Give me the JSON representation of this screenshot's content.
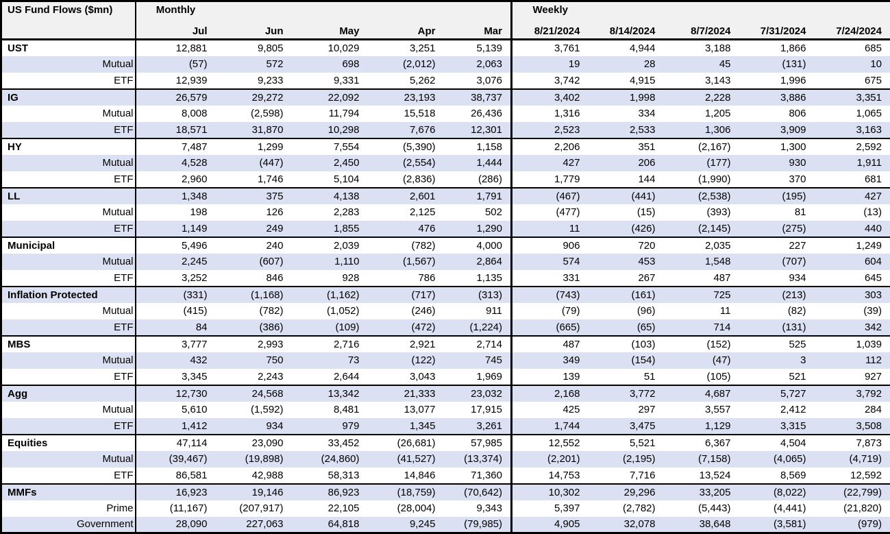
{
  "colors": {
    "stripe": "#dbe0f2",
    "header_bg": "#f1f1f1",
    "border": "#000000",
    "background": "#ffffff",
    "text": "#000000"
  },
  "chart_data": {
    "type": "table",
    "title": "US Fund Flows ($mn)",
    "sections": [
      {
        "label": "Monthly",
        "columns": [
          "Jul",
          "Jun",
          "May",
          "Apr",
          "Mar"
        ]
      },
      {
        "label": "Weekly",
        "columns": [
          "8/21/2024",
          "8/14/2024",
          "8/7/2024",
          "7/31/2024",
          "7/24/2024"
        ]
      }
    ],
    "groups": [
      {
        "rows": [
          {
            "label": "UST",
            "is_group_header": true,
            "values": [
              12881,
              9805,
              10029,
              3251,
              5139,
              3761,
              4944,
              3188,
              1866,
              685
            ]
          },
          {
            "label": "Mutual",
            "is_group_header": false,
            "values": [
              -57,
              572,
              698,
              -2012,
              2063,
              19,
              28,
              45,
              -131,
              10
            ]
          },
          {
            "label": "ETF",
            "is_group_header": false,
            "values": [
              12939,
              9233,
              9331,
              5262,
              3076,
              3742,
              4915,
              3143,
              1996,
              675
            ]
          }
        ]
      },
      {
        "rows": [
          {
            "label": "IG",
            "is_group_header": true,
            "values": [
              26579,
              29272,
              22092,
              23193,
              38737,
              3402,
              1998,
              2228,
              3886,
              3351
            ]
          },
          {
            "label": "Mutual",
            "is_group_header": false,
            "values": [
              8008,
              -2598,
              11794,
              15518,
              26436,
              1316,
              334,
              1205,
              806,
              1065
            ]
          },
          {
            "label": "ETF",
            "is_group_header": false,
            "values": [
              18571,
              31870,
              10298,
              7676,
              12301,
              2523,
              2533,
              1306,
              3909,
              3163
            ]
          }
        ]
      },
      {
        "rows": [
          {
            "label": "HY",
            "is_group_header": true,
            "values": [
              7487,
              1299,
              7554,
              -5390,
              1158,
              2206,
              351,
              -2167,
              1300,
              2592
            ]
          },
          {
            "label": "Mutual",
            "is_group_header": false,
            "values": [
              4528,
              -447,
              2450,
              -2554,
              1444,
              427,
              206,
              -177,
              930,
              1911
            ]
          },
          {
            "label": "ETF",
            "is_group_header": false,
            "values": [
              2960,
              1746,
              5104,
              -2836,
              -286,
              1779,
              144,
              -1990,
              370,
              681
            ]
          }
        ]
      },
      {
        "rows": [
          {
            "label": "LL",
            "is_group_header": true,
            "values": [
              1348,
              375,
              4138,
              2601,
              1791,
              -467,
              -441,
              -2538,
              -195,
              427
            ]
          },
          {
            "label": "Mutual",
            "is_group_header": false,
            "values": [
              198,
              126,
              2283,
              2125,
              502,
              -477,
              -15,
              -393,
              81,
              -13
            ]
          },
          {
            "label": "ETF",
            "is_group_header": false,
            "values": [
              1149,
              249,
              1855,
              476,
              1290,
              11,
              -426,
              -2145,
              -275,
              440
            ]
          }
        ]
      },
      {
        "rows": [
          {
            "label": "Municipal",
            "is_group_header": true,
            "values": [
              5496,
              240,
              2039,
              -782,
              4000,
              906,
              720,
              2035,
              227,
              1249
            ]
          },
          {
            "label": "Mutual",
            "is_group_header": false,
            "values": [
              2245,
              -607,
              1110,
              -1567,
              2864,
              574,
              453,
              1548,
              -707,
              604
            ]
          },
          {
            "label": "ETF",
            "is_group_header": false,
            "values": [
              3252,
              846,
              928,
              786,
              1135,
              331,
              267,
              487,
              934,
              645
            ]
          }
        ]
      },
      {
        "rows": [
          {
            "label": "Inflation Protected",
            "is_group_header": true,
            "values": [
              -331,
              -1168,
              -1162,
              -717,
              -313,
              -743,
              -161,
              725,
              -213,
              303
            ]
          },
          {
            "label": "Mutual",
            "is_group_header": false,
            "values": [
              -415,
              -782,
              -1052,
              -246,
              911,
              -79,
              -96,
              11,
              -82,
              -39
            ]
          },
          {
            "label": "ETF",
            "is_group_header": false,
            "values": [
              84,
              -386,
              -109,
              -472,
              -1224,
              -665,
              -65,
              714,
              -131,
              342
            ]
          }
        ]
      },
      {
        "rows": [
          {
            "label": "MBS",
            "is_group_header": true,
            "values": [
              3777,
              2993,
              2716,
              2921,
              2714,
              487,
              -103,
              -152,
              525,
              1039
            ]
          },
          {
            "label": "Mutual",
            "is_group_header": false,
            "values": [
              432,
              750,
              73,
              -122,
              745,
              349,
              -154,
              -47,
              3,
              112
            ]
          },
          {
            "label": "ETF",
            "is_group_header": false,
            "values": [
              3345,
              2243,
              2644,
              3043,
              1969,
              139,
              51,
              -105,
              521,
              927
            ]
          }
        ]
      },
      {
        "rows": [
          {
            "label": "Agg",
            "is_group_header": true,
            "values": [
              12730,
              24568,
              13342,
              21333,
              23032,
              2168,
              3772,
              4687,
              5727,
              3792
            ]
          },
          {
            "label": "Mutual",
            "is_group_header": false,
            "values": [
              5610,
              -1592,
              8481,
              13077,
              17915,
              425,
              297,
              3557,
              2412,
              284
            ]
          },
          {
            "label": "ETF",
            "is_group_header": false,
            "values": [
              1412,
              934,
              979,
              1345,
              3261,
              1744,
              3475,
              1129,
              3315,
              3508
            ]
          }
        ]
      },
      {
        "rows": [
          {
            "label": "Equities",
            "is_group_header": true,
            "values": [
              47114,
              23090,
              33452,
              -26681,
              57985,
              12552,
              5521,
              6367,
              4504,
              7873
            ]
          },
          {
            "label": "Mutual",
            "is_group_header": false,
            "values": [
              -39467,
              -19898,
              -24860,
              -41527,
              -13374,
              -2201,
              -2195,
              -7158,
              -4065,
              -4719
            ]
          },
          {
            "label": "ETF",
            "is_group_header": false,
            "values": [
              86581,
              42988,
              58313,
              14846,
              71360,
              14753,
              7716,
              13524,
              8569,
              12592
            ]
          }
        ]
      },
      {
        "rows": [
          {
            "label": "MMFs",
            "is_group_header": true,
            "values": [
              16923,
              19146,
              86923,
              -18759,
              -70642,
              10302,
              29296,
              33205,
              -8022,
              -22799
            ]
          },
          {
            "label": "Prime",
            "is_group_header": false,
            "values": [
              -11167,
              -207917,
              22105,
              -28004,
              9343,
              5397,
              -2782,
              -5443,
              -4441,
              -21820
            ]
          },
          {
            "label": "Government",
            "is_group_header": false,
            "values": [
              28090,
              227063,
              64818,
              9245,
              -79985,
              4905,
              32078,
              38648,
              -3581,
              -979
            ]
          }
        ]
      }
    ]
  }
}
